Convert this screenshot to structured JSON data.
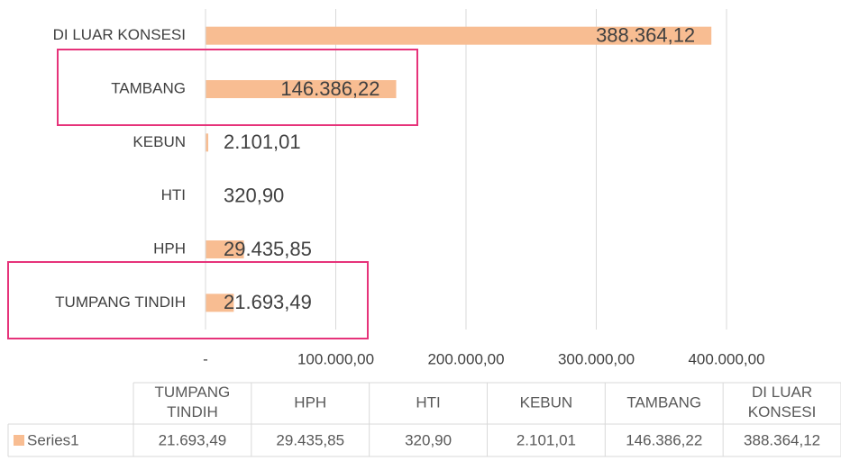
{
  "chart_data": {
    "type": "bar",
    "orientation": "horizontal",
    "categories": [
      "TUMPANG TINDIH",
      "HPH",
      "HTI",
      "KEBUN",
      "TAMBANG",
      "DI LUAR KONSESI"
    ],
    "series": [
      {
        "name": "Series1",
        "color": "#f8bd92",
        "values": [
          21693.49,
          29435.85,
          320.9,
          2101.01,
          146386.22,
          388364.12
        ],
        "value_labels": [
          "21.693,49",
          "29.435,85",
          "320,90",
          "2.101,01",
          "146.386,22",
          "388.364,12"
        ]
      }
    ],
    "xlim": [
      0,
      400000
    ],
    "xticks": [
      {
        "value": 0,
        "label": "-"
      },
      {
        "value": 100000,
        "label": "100.000,00"
      },
      {
        "value": 200000,
        "label": "200.000,00"
      },
      {
        "value": 300000,
        "label": "300.000,00"
      },
      {
        "value": 400000,
        "label": "400.000,00"
      }
    ],
    "grid": true,
    "data_table": true
  }
}
